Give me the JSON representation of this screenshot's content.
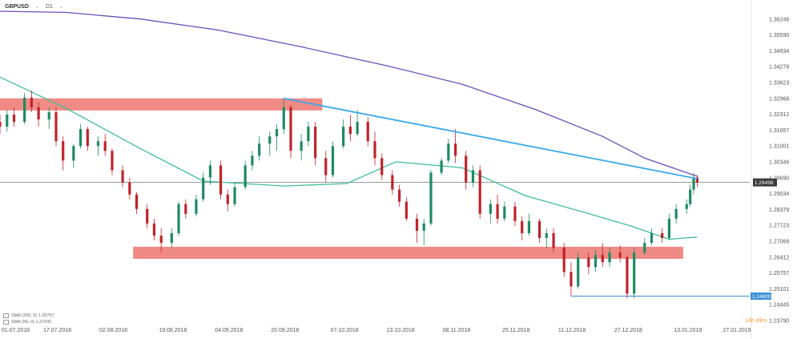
{
  "header": {
    "symbol": "GBPUSD",
    "interval": "D1"
  },
  "legend": [
    {
      "label": "SMA (200, 0) 1.29757"
    },
    {
      "label": "SMA (50, 0) 1.27241"
    }
  ],
  "current_price_badge": "1.29498",
  "support_badge": "1.24800",
  "countdown": "14h 49m",
  "colors": {
    "up": "#1e8a63",
    "down": "#c0232b",
    "sma200": "#6b4fbb",
    "sma50": "#3fbf94",
    "trendline": "#3aa9e8",
    "zone": "#f08a84",
    "price_badge": "#3a3a3a",
    "support": "#3a8fd6"
  },
  "chart_data": {
    "type": "candlestick",
    "symbol": "GBPUSD",
    "timeframe": "D1",
    "x_ticks": [
      "01.07.2018",
      "17.07.2018",
      "02.08.2018",
      "19.08.2018",
      "04.09.2018",
      "20.09.2018",
      "07.10.2018",
      "23.10.2018",
      "08.11.2018",
      "25.11.2018",
      "11.12.2018",
      "27.12.2018",
      "13.01.2019",
      "27.01.2019"
    ],
    "y_ticks": [
      1.36246,
      1.3559,
      1.34934,
      1.34279,
      1.33623,
      1.32968,
      1.32312,
      1.31657,
      1.31001,
      1.30346,
      1.2969,
      1.29034,
      1.28379,
      1.27723,
      1.27068,
      1.26412,
      1.25757,
      1.25101,
      1.24445,
      1.2379
    ],
    "ylim": [
      1.2379,
      1.3657
    ],
    "x_range": [
      "2018-07-01",
      "2019-01-31"
    ],
    "zones": [
      {
        "from": "2018-07-01",
        "to": "2018-10-01",
        "low": 1.3247,
        "high": 1.3297
      },
      {
        "from": "2018-08-08",
        "to": "2019-01-12",
        "low": 1.2634,
        "high": 1.2684
      }
    ],
    "trendline": {
      "from": [
        "2018-09-20",
        1.3297
      ],
      "to": [
        "2019-01-16",
        1.2965
      ]
    },
    "support_line": {
      "from": "2018-12-11",
      "to": "2019-01-31",
      "value": 1.248
    },
    "current_price": 1.29498,
    "sma200": [
      [
        "2018-07-01",
        1.3657
      ],
      [
        "2018-07-20",
        1.3652
      ],
      [
        "2018-08-10",
        1.3625
      ],
      [
        "2018-09-01",
        1.358
      ],
      [
        "2018-09-25",
        1.351
      ],
      [
        "2018-10-20",
        1.343
      ],
      [
        "2018-11-10",
        1.3355
      ],
      [
        "2018-12-01",
        1.325
      ],
      [
        "2018-12-20",
        1.314
      ],
      [
        "2019-01-01",
        1.305
      ],
      [
        "2019-01-16",
        1.2975
      ]
    ],
    "sma50": [
      [
        "2018-07-01",
        1.3385
      ],
      [
        "2018-07-20",
        1.3255
      ],
      [
        "2018-08-10",
        1.309
      ],
      [
        "2018-08-28",
        1.2955
      ],
      [
        "2018-09-20",
        1.2935
      ],
      [
        "2018-10-08",
        1.2945
      ],
      [
        "2018-10-22",
        1.3035
      ],
      [
        "2018-11-10",
        1.301
      ],
      [
        "2018-11-28",
        1.2895
      ],
      [
        "2018-12-15",
        1.2825
      ],
      [
        "2018-12-28",
        1.277
      ],
      [
        "2019-01-08",
        1.2715
      ],
      [
        "2019-01-16",
        1.2724
      ]
    ],
    "candles": [
      [
        "2018-07-01",
        1.32,
        1.323,
        1.315,
        1.318
      ],
      [
        "2018-07-03",
        1.318,
        1.325,
        1.316,
        1.323
      ],
      [
        "2018-07-05",
        1.323,
        1.326,
        1.318,
        1.32
      ],
      [
        "2018-07-08",
        1.32,
        1.332,
        1.319,
        1.33
      ],
      [
        "2018-07-10",
        1.33,
        1.333,
        1.324,
        1.326
      ],
      [
        "2018-07-12",
        1.326,
        1.328,
        1.318,
        1.321
      ],
      [
        "2018-07-15",
        1.321,
        1.326,
        1.317,
        1.324
      ],
      [
        "2018-07-17",
        1.324,
        1.326,
        1.31,
        1.312
      ],
      [
        "2018-07-19",
        1.312,
        1.314,
        1.3,
        1.304
      ],
      [
        "2018-07-22",
        1.304,
        1.311,
        1.301,
        1.31
      ],
      [
        "2018-07-24",
        1.31,
        1.319,
        1.309,
        1.317
      ],
      [
        "2018-07-26",
        1.317,
        1.318,
        1.308,
        1.31
      ],
      [
        "2018-07-29",
        1.31,
        1.314,
        1.306,
        1.312
      ],
      [
        "2018-07-31",
        1.312,
        1.315,
        1.306,
        1.308
      ],
      [
        "2018-08-02",
        1.308,
        1.309,
        1.298,
        1.3
      ],
      [
        "2018-08-05",
        1.3,
        1.302,
        1.293,
        1.295
      ],
      [
        "2018-08-07",
        1.295,
        1.297,
        1.288,
        1.29
      ],
      [
        "2018-08-09",
        1.29,
        1.291,
        1.282,
        1.284
      ],
      [
        "2018-08-12",
        1.284,
        1.286,
        1.276,
        1.278
      ],
      [
        "2018-08-14",
        1.278,
        1.28,
        1.271,
        1.273
      ],
      [
        "2018-08-16",
        1.273,
        1.276,
        1.266,
        1.27
      ],
      [
        "2018-08-19",
        1.27,
        1.276,
        1.268,
        1.274
      ],
      [
        "2018-08-21",
        1.274,
        1.287,
        1.273,
        1.286
      ],
      [
        "2018-08-23",
        1.286,
        1.288,
        1.28,
        1.282
      ],
      [
        "2018-08-26",
        1.282,
        1.29,
        1.281,
        1.288
      ],
      [
        "2018-08-28",
        1.288,
        1.299,
        1.287,
        1.297
      ],
      [
        "2018-08-30",
        1.297,
        1.304,
        1.294,
        1.302
      ],
      [
        "2018-09-02",
        1.302,
        1.304,
        1.288,
        1.29
      ],
      [
        "2018-09-04",
        1.29,
        1.292,
        1.283,
        1.286
      ],
      [
        "2018-09-06",
        1.286,
        1.295,
        1.285,
        1.293
      ],
      [
        "2018-09-09",
        1.293,
        1.304,
        1.292,
        1.302
      ],
      [
        "2018-09-11",
        1.302,
        1.308,
        1.3,
        1.306
      ],
      [
        "2018-09-13",
        1.306,
        1.314,
        1.304,
        1.311
      ],
      [
        "2018-09-16",
        1.311,
        1.316,
        1.306,
        1.314
      ],
      [
        "2018-09-18",
        1.314,
        1.319,
        1.308,
        1.317
      ],
      [
        "2018-09-20",
        1.317,
        1.3297,
        1.315,
        1.326
      ],
      [
        "2018-09-22",
        1.326,
        1.327,
        1.305,
        1.308
      ],
      [
        "2018-09-25",
        1.308,
        1.315,
        1.304,
        1.312
      ],
      [
        "2018-09-27",
        1.312,
        1.32,
        1.31,
        1.318
      ],
      [
        "2018-09-29",
        1.318,
        1.32,
        1.302,
        1.305
      ],
      [
        "2018-10-02",
        1.305,
        1.308,
        1.295,
        1.298
      ],
      [
        "2018-10-04",
        1.298,
        1.312,
        1.297,
        1.31
      ],
      [
        "2018-10-07",
        1.31,
        1.321,
        1.309,
        1.318
      ],
      [
        "2018-10-09",
        1.318,
        1.323,
        1.312,
        1.315
      ],
      [
        "2018-10-11",
        1.315,
        1.325,
        1.314,
        1.32
      ],
      [
        "2018-10-14",
        1.32,
        1.322,
        1.31,
        1.312
      ],
      [
        "2018-10-16",
        1.312,
        1.316,
        1.302,
        1.305
      ],
      [
        "2018-10-18",
        1.305,
        1.307,
        1.296,
        1.298
      ],
      [
        "2018-10-21",
        1.298,
        1.3,
        1.29,
        1.292
      ],
      [
        "2018-10-23",
        1.292,
        1.294,
        1.285,
        1.287
      ],
      [
        "2018-10-25",
        1.287,
        1.289,
        1.279,
        1.28
      ],
      [
        "2018-10-28",
        1.28,
        1.282,
        1.27,
        1.275
      ],
      [
        "2018-10-30",
        1.275,
        1.28,
        1.269,
        1.278
      ],
      [
        "2018-11-01",
        1.278,
        1.3,
        1.277,
        1.299
      ],
      [
        "2018-11-04",
        1.299,
        1.305,
        1.298,
        1.304
      ],
      [
        "2018-11-06",
        1.304,
        1.313,
        1.303,
        1.311
      ],
      [
        "2018-11-08",
        1.311,
        1.317,
        1.303,
        1.306
      ],
      [
        "2018-11-11",
        1.306,
        1.308,
        1.292,
        1.295
      ],
      [
        "2018-11-13",
        1.295,
        1.302,
        1.293,
        1.3
      ],
      [
        "2018-11-15",
        1.3,
        1.302,
        1.28,
        1.282
      ],
      [
        "2018-11-18",
        1.282,
        1.288,
        1.278,
        1.286
      ],
      [
        "2018-11-20",
        1.286,
        1.29,
        1.278,
        1.28
      ],
      [
        "2018-11-22",
        1.28,
        1.287,
        1.279,
        1.285
      ],
      [
        "2018-11-25",
        1.285,
        1.287,
        1.277,
        1.279
      ],
      [
        "2018-11-27",
        1.279,
        1.281,
        1.271,
        1.274
      ],
      [
        "2018-11-29",
        1.274,
        1.282,
        1.273,
        1.279
      ],
      [
        "2018-12-02",
        1.279,
        1.28,
        1.27,
        1.272
      ],
      [
        "2018-12-04",
        1.272,
        1.276,
        1.268,
        1.274
      ],
      [
        "2018-12-06",
        1.274,
        1.276,
        1.266,
        1.268
      ],
      [
        "2018-12-09",
        1.268,
        1.27,
        1.256,
        1.258
      ],
      [
        "2018-12-11",
        1.258,
        1.262,
        1.248,
        1.252
      ],
      [
        "2018-12-13",
        1.252,
        1.266,
        1.251,
        1.264
      ],
      [
        "2018-12-16",
        1.264,
        1.266,
        1.257,
        1.26
      ],
      [
        "2018-12-18",
        1.26,
        1.267,
        1.258,
        1.265
      ],
      [
        "2018-12-20",
        1.265,
        1.27,
        1.26,
        1.262
      ],
      [
        "2018-12-22",
        1.262,
        1.268,
        1.26,
        1.266
      ],
      [
        "2018-12-25",
        1.266,
        1.269,
        1.262,
        1.264
      ],
      [
        "2018-12-27",
        1.264,
        1.265,
        1.247,
        1.249
      ],
      [
        "2018-12-29",
        1.249,
        1.268,
        1.247,
        1.266
      ],
      [
        "2019-01-01",
        1.266,
        1.272,
        1.265,
        1.27
      ],
      [
        "2019-01-03",
        1.27,
        1.276,
        1.269,
        1.274
      ],
      [
        "2019-01-06",
        1.274,
        1.276,
        1.27,
        1.272
      ],
      [
        "2019-01-08",
        1.272,
        1.282,
        1.271,
        1.28
      ],
      [
        "2019-01-10",
        1.28,
        1.286,
        1.278,
        1.284
      ],
      [
        "2019-01-13",
        1.284,
        1.288,
        1.282,
        1.286
      ],
      [
        "2019-01-14",
        1.286,
        1.294,
        1.285,
        1.292
      ],
      [
        "2019-01-15",
        1.292,
        1.299,
        1.29,
        1.297
      ],
      [
        "2019-01-16",
        1.297,
        1.298,
        1.293,
        1.295
      ]
    ]
  }
}
